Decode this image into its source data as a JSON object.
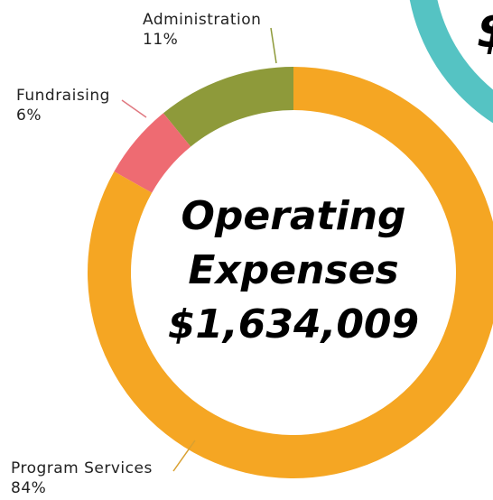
{
  "chart_data": {
    "type": "pie",
    "center_text": [
      "Operating",
      "Expenses",
      "$1,634,009"
    ],
    "categories": [
      "Administration",
      "Fundraising",
      "Program Services"
    ],
    "values": [
      11,
      6,
      84
    ],
    "value_labels": [
      "11%",
      "6%",
      "84%"
    ],
    "colors": [
      "#8e9a3a",
      "#ee6b72",
      "#f5a623"
    ],
    "leader_colors": [
      "#8e9a3a",
      "#e07880",
      "#d9a030"
    ]
  },
  "corner_text": "$"
}
